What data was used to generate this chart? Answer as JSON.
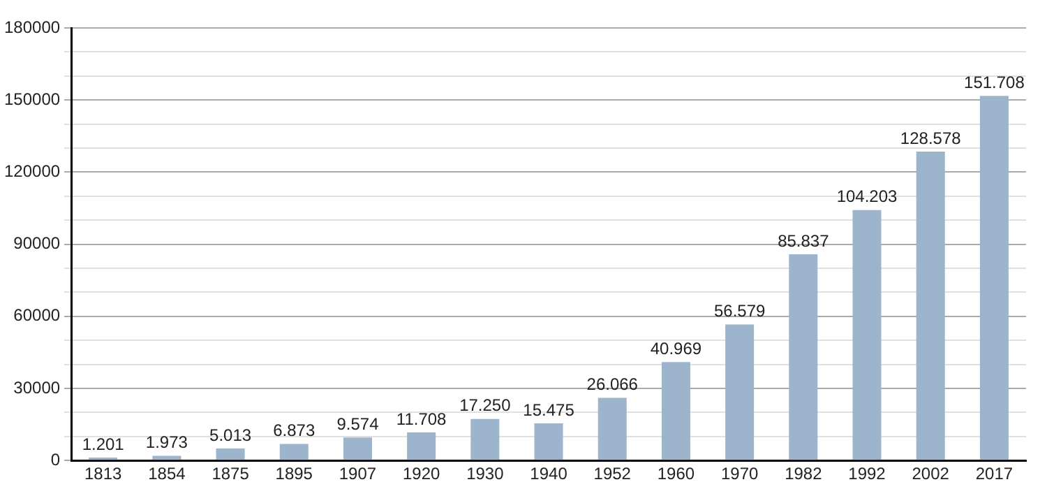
{
  "chart_data": {
    "type": "bar",
    "categories": [
      "1813",
      "1854",
      "1875",
      "1895",
      "1907",
      "1920",
      "1930",
      "1940",
      "1952",
      "1960",
      "1970",
      "1982",
      "1992",
      "2002",
      "2017"
    ],
    "values": [
      1201,
      1973,
      5013,
      6873,
      9574,
      11708,
      17250,
      15475,
      26066,
      40969,
      56579,
      85837,
      104203,
      128578,
      151708
    ],
    "value_labels": [
      "1.201",
      "1.973",
      "5.013",
      "6.873",
      "9.574",
      "11.708",
      "17.250",
      "15.475",
      "26.066",
      "40.969",
      "56.579",
      "85.837",
      "104.203",
      "128.578",
      "151.708"
    ],
    "color": "#9cb4cc",
    "ylim": [
      0,
      180000
    ],
    "yticks": [
      0,
      {
        "value": 10000,
        "label": null
      },
      {
        "value": 20000,
        "label": null
      },
      30000,
      {
        "value": 40000,
        "label": null
      },
      {
        "value": 50000,
        "label": null
      },
      60000,
      {
        "value": 70000,
        "label": null
      },
      {
        "value": 80000,
        "label": null
      },
      90000,
      {
        "value": 100000,
        "label": null
      },
      {
        "value": 110000,
        "label": null
      },
      120000,
      {
        "value": 130000,
        "label": null
      },
      {
        "value": 140000,
        "label": null
      },
      150000,
      {
        "value": 160000,
        "label": null
      },
      {
        "value": 170000,
        "label": null
      },
      180000
    ],
    "grid": "y"
  }
}
